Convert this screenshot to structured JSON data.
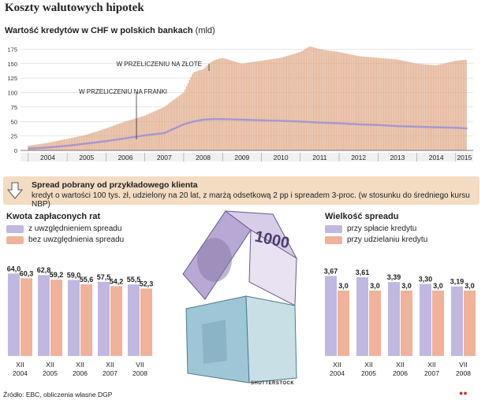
{
  "title": "Koszty walutowych hipotek",
  "top_chart": {
    "subtitle": "Wartość kredytów w CHF w polskich bankach",
    "unit": "(mld)",
    "annotation_pln": "W PRZELICZENIU NA ZŁOTE",
    "annotation_chf": "W PRZELICZENIU NA FRANKI",
    "colors": {
      "bars": "#e0aa8a",
      "line": "#a898d0"
    }
  },
  "banner": {
    "title": "Spread pobrany od przykładowego klienta",
    "text": "kredyt o wartości 100 tys. zł, udzielony na 20 lat, z marżą odsetkową 2 pp i spreadem 3-proc. (w stosunku do średniego kursu NBP)"
  },
  "left": {
    "title": "Kwota zapłaconych rat",
    "legend": [
      "z uwzględnieniem spreadu",
      "bez uwzględnienia spreadu"
    ]
  },
  "right": {
    "title": "Wielkość spreadu",
    "legend": [
      "przy spłacie kredytu",
      "przy udzielaniu kredytu"
    ]
  },
  "source": "Źródło: EBC, obliczenia własne DGP",
  "credit": "SHUTTERSTOCK",
  "chart_data": [
    {
      "type": "area",
      "title": "Wartość kredytów w CHF w polskich bankach",
      "ylabel": "(mld)",
      "ylim": [
        0,
        200
      ],
      "yticks": [
        0,
        25,
        50,
        75,
        100,
        125,
        150,
        175
      ],
      "grid": true,
      "x_labels": [
        "2004",
        "2005",
        "2006",
        "2007",
        "2008",
        "2009",
        "2010",
        "2011",
        "2012",
        "2013",
        "2014",
        "2015"
      ],
      "x": [
        2004.0,
        2004.5,
        2005.0,
        2005.5,
        2006.0,
        2006.5,
        2007.0,
        2007.5,
        2008.0,
        2008.25,
        2008.5,
        2008.75,
        2009.0,
        2009.5,
        2010.0,
        2010.5,
        2011.0,
        2011.25,
        2011.5,
        2012.0,
        2012.5,
        2013.0,
        2013.5,
        2014.0,
        2014.5,
        2015.0,
        2015.3
      ],
      "series": [
        {
          "name": "W PRZELICZENIU NA ZŁOTE",
          "values": [
            8,
            13,
            20,
            27,
            38,
            50,
            60,
            75,
            100,
            135,
            140,
            155,
            160,
            150,
            155,
            160,
            170,
            180,
            175,
            170,
            163,
            160,
            157,
            150,
            147,
            155,
            157
          ]
        },
        {
          "name": "W PRZELICZENIU NA FRANKI",
          "values": [
            3,
            5,
            8,
            12,
            16,
            21,
            26,
            30,
            45,
            50,
            53,
            54,
            54,
            53,
            52,
            51,
            50,
            49,
            48,
            47,
            45,
            44,
            42,
            41,
            40,
            39,
            38
          ]
        }
      ]
    },
    {
      "type": "bar",
      "title": "Kwota zapłaconych rat",
      "categories": [
        "XII\n2004",
        "XII\n2005",
        "XII\n2006",
        "XII\n2007",
        "VII\n2008"
      ],
      "series": [
        {
          "name": "z uwzględnieniem spreadu",
          "values": [
            64.0,
            62.8,
            59.0,
            57.5,
            55.5
          ],
          "labels": [
            "64,0",
            "62,8",
            "59,0",
            "57,5",
            "55,5"
          ],
          "color": "#c0b8e0"
        },
        {
          "name": "bez uwzględnienia spreadu",
          "values": [
            60.3,
            59.2,
            55.6,
            54.2,
            52.3
          ],
          "labels": [
            "60,3",
            "59,2",
            "55,6",
            "54,2",
            "52,3"
          ],
          "color": "#f0b39a"
        }
      ]
    },
    {
      "type": "bar",
      "title": "Wielkość spreadu",
      "categories": [
        "XII\n2004",
        "XII\n2005",
        "XII\n2006",
        "XII\n2007",
        "VII\n2008"
      ],
      "series": [
        {
          "name": "przy spłacie kredytu",
          "values": [
            3.67,
            3.61,
            3.39,
            3.3,
            3.19
          ],
          "labels": [
            "3,67",
            "3,61",
            "3,39",
            "3,30",
            "3,19"
          ],
          "color": "#c0b8e0"
        },
        {
          "name": "przy udzielaniu kredytu",
          "values": [
            3.0,
            3.0,
            3.0,
            3.0,
            3.0
          ],
          "labels": [
            "3,0",
            "3,0",
            "3,0",
            "3,0",
            "3,0"
          ],
          "color": "#f0b39a"
        }
      ]
    }
  ]
}
